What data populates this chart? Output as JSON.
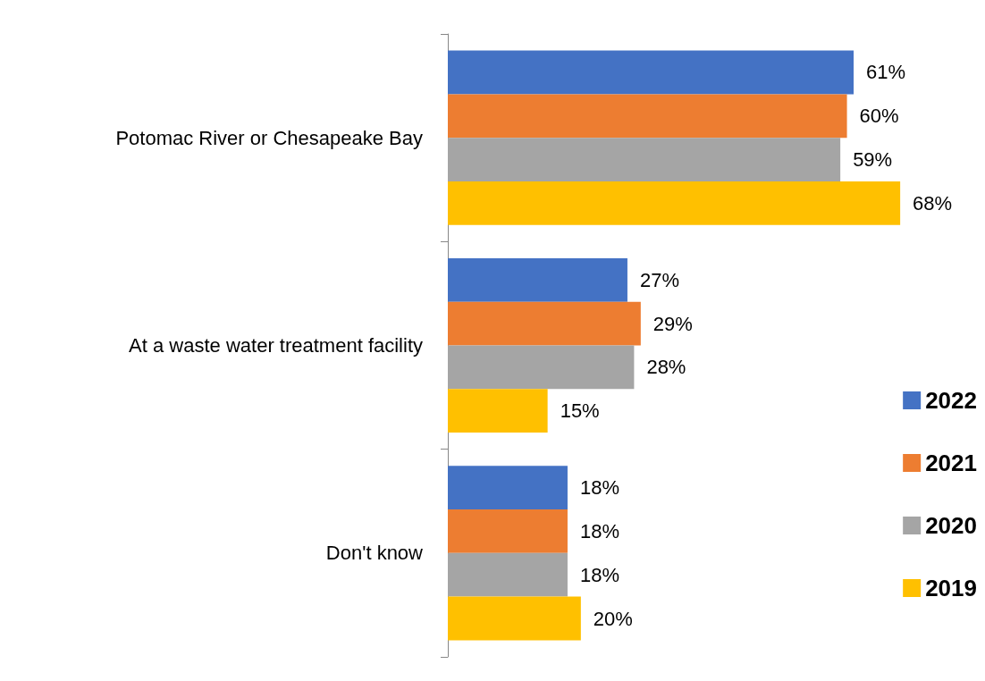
{
  "chart_data": {
    "type": "bar",
    "orientation": "horizontal",
    "categories": [
      "Potomac River or Chesapeake Bay",
      "At a waste water treatment facility",
      "Don't know"
    ],
    "series": [
      {
        "name": "2022",
        "color": "#4472c4",
        "values": [
          61,
          27,
          18
        ],
        "value_labels": [
          "61%",
          "27%",
          "18%"
        ]
      },
      {
        "name": "2021",
        "color": "#ed7d31",
        "values": [
          60,
          29,
          18
        ],
        "value_labels": [
          "60%",
          "29%",
          "18%"
        ]
      },
      {
        "name": "2020",
        "color": "#a5a5a5",
        "values": [
          59,
          28,
          18
        ],
        "value_labels": [
          "59%",
          "28%",
          "18%"
        ]
      },
      {
        "name": "2019",
        "color": "#ffc000",
        "values": [
          68,
          15,
          20
        ],
        "value_labels": [
          "68%",
          "15%",
          "20%"
        ]
      }
    ],
    "legend": "right"
  }
}
